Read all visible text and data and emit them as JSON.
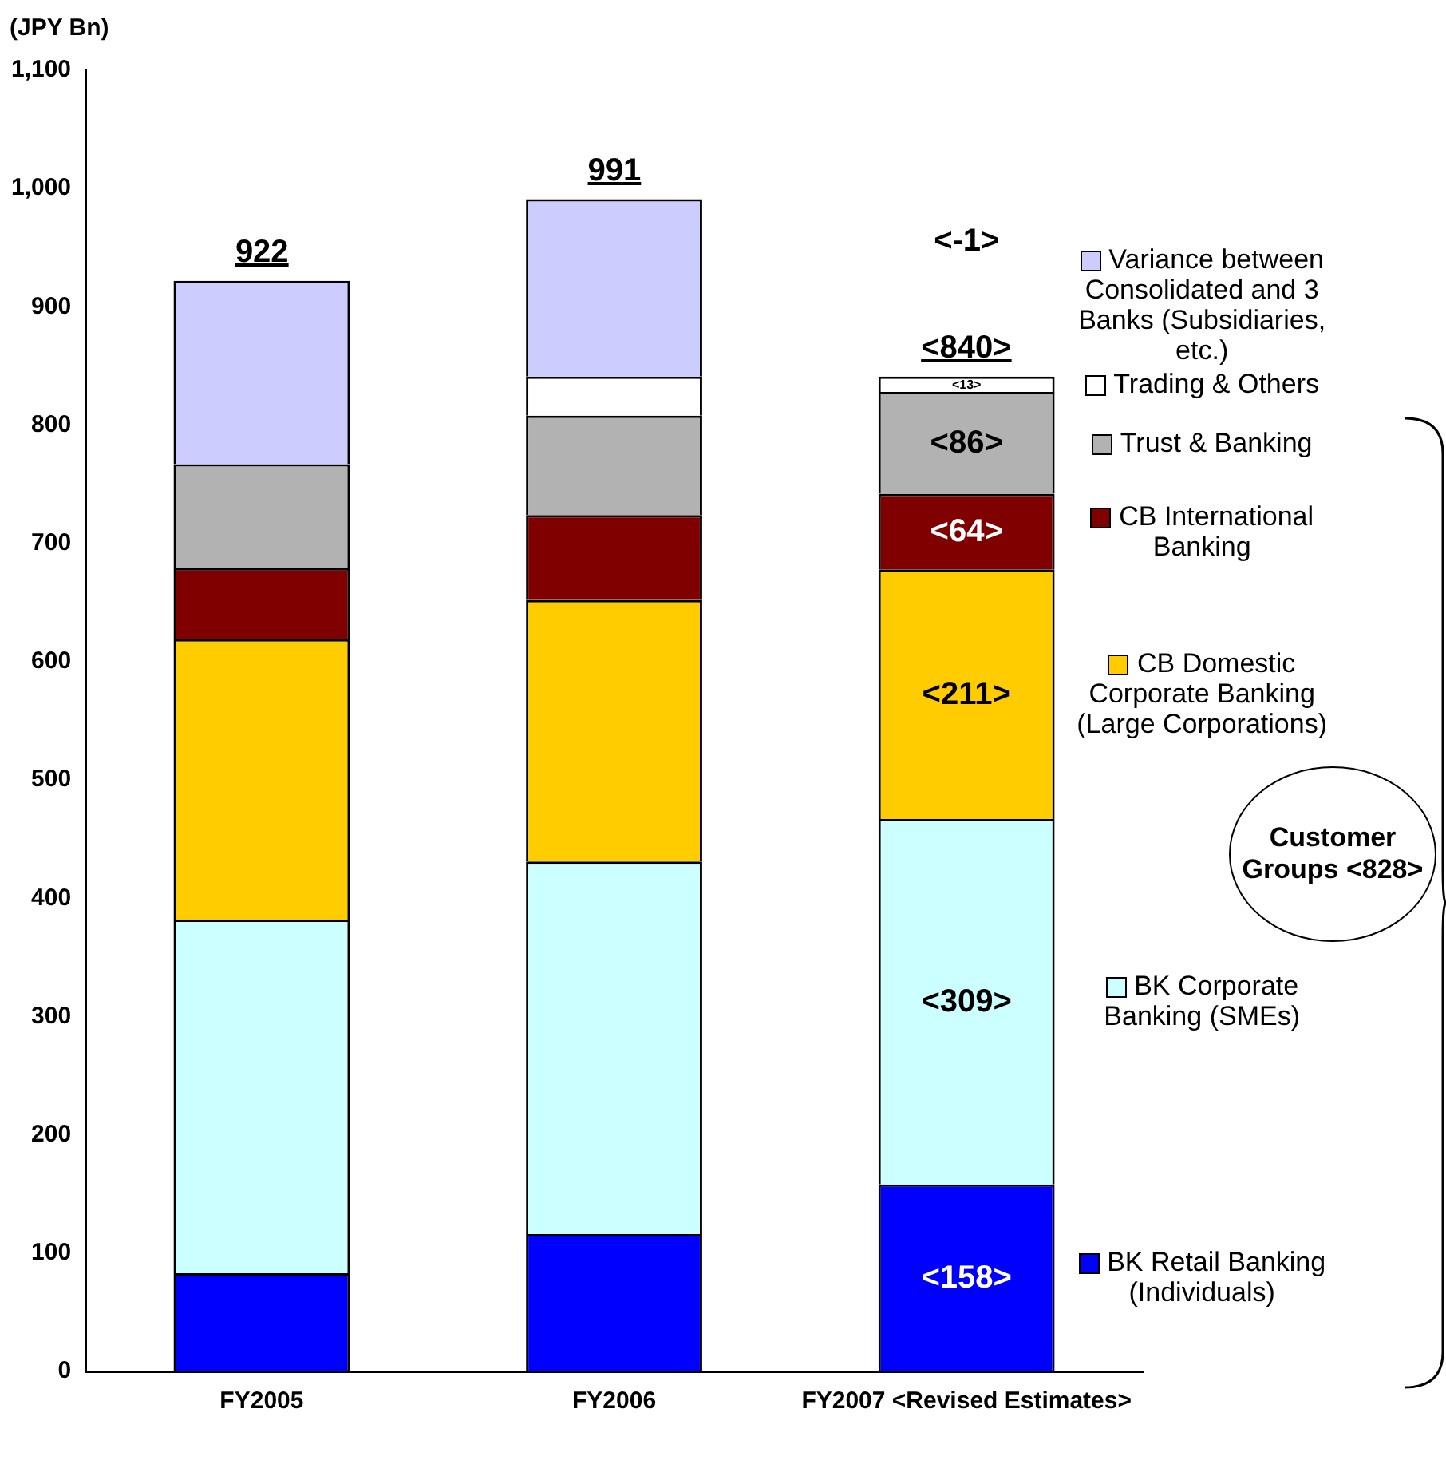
{
  "chart_data": {
    "type": "bar",
    "stacked": true,
    "ylabel": "(JPY Bn)",
    "categories": [
      "FY2005",
      "FY2006",
      "FY2007 <Revised Estimates>"
    ],
    "series": [
      {
        "name": "BK Retail Banking (Individuals)",
        "color": "#0000ff",
        "values": [
          83,
          116,
          158
        ],
        "value_labels": [
          null,
          null,
          "<158>"
        ]
      },
      {
        "name": "BK Corporate Banking (SMEs)",
        "color": "#ccffff",
        "values": [
          299,
          315,
          309
        ],
        "value_labels": [
          null,
          null,
          "<309>"
        ]
      },
      {
        "name": "CB Domestic Corporate Banking (Large Corporations)",
        "color": "#ffcc00",
        "values": [
          237,
          221,
          211
        ],
        "value_labels": [
          null,
          null,
          "<211>"
        ]
      },
      {
        "name": "CB International Banking",
        "color": "#800000",
        "values": [
          60,
          72,
          64
        ],
        "value_labels": [
          null,
          null,
          "<64>"
        ]
      },
      {
        "name": "Trust & Banking",
        "color": "#b2b2b2",
        "values": [
          88,
          84,
          86
        ],
        "value_labels": [
          null,
          null,
          "<86>"
        ]
      },
      {
        "name": "Trading & Others",
        "color": "#ffffff",
        "values": [
          0,
          33,
          13
        ],
        "value_labels": [
          null,
          null,
          "<13>"
        ]
      },
      {
        "name": "Variance between Consolidated and 3 Banks (Subsidiaries, etc.)",
        "color": "#ccccff",
        "values": [
          155,
          150,
          null
        ]
      }
    ],
    "totals": [
      "922",
      "991",
      "<840>"
    ],
    "ylim": [
      0,
      1100
    ],
    "yticks": [
      0,
      100,
      200,
      300,
      400,
      500,
      600,
      700,
      800,
      900,
      {
        "value": 1000,
        "label": "1,000"
      },
      {
        "value": 1100,
        "label": "1,100"
      }
    ],
    "grid": false,
    "legend": "right",
    "annotations": [
      "<-1>",
      "Customer Groups <828>"
    ]
  }
}
